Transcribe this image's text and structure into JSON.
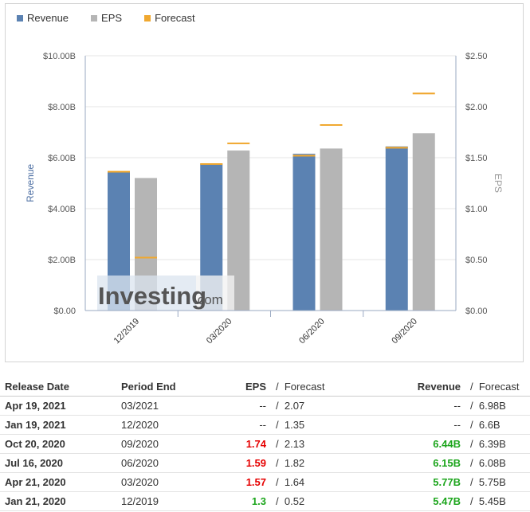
{
  "legend": [
    {
      "label": "Revenue",
      "color": "#5b82b2"
    },
    {
      "label": "EPS",
      "color": "#b5b5b5"
    },
    {
      "label": "Forecast",
      "color": "#f0a830"
    }
  ],
  "chart_data": {
    "type": "bar",
    "categories": [
      "12/2019",
      "03/2020",
      "06/2020",
      "09/2020"
    ],
    "series": [
      {
        "name": "Revenue",
        "axis": "left",
        "values": [
          5.47,
          5.77,
          6.15,
          6.44
        ],
        "color": "#5b82b2"
      },
      {
        "name": "EPS",
        "axis": "right",
        "values": [
          1.3,
          1.57,
          1.59,
          1.74
        ],
        "color": "#b5b5b5"
      }
    ],
    "forecasts": {
      "revenue": [
        5.45,
        5.75,
        6.08,
        6.39
      ],
      "eps": [
        0.52,
        1.64,
        1.82,
        2.13
      ],
      "color": "#f0a830"
    },
    "ylabel": "Revenue",
    "y2label": "EPS",
    "ylim": [
      0,
      10
    ],
    "y2lim": [
      0,
      2.5
    ],
    "yticks": [
      "$0.00",
      "$2.00B",
      "$4.00B",
      "$6.00B",
      "$8.00B",
      "$10.00B"
    ],
    "y2ticks": [
      "$0.00",
      "$0.50",
      "$1.00",
      "$1.50",
      "$2.00",
      "$2.50"
    ],
    "grid": true,
    "legend_position": "top-left"
  },
  "watermark": {
    "text": "Investing",
    "suffix": ".com"
  },
  "table": {
    "headers": {
      "release_date": "Release Date",
      "period_end": "Period End",
      "eps": "EPS",
      "eps_forecast": "Forecast",
      "revenue": "Revenue",
      "revenue_forecast": "Forecast",
      "separator": "/"
    },
    "rows": [
      {
        "date": "Apr 19, 2021",
        "period": "03/2021",
        "eps": "--",
        "eps_class": "neutral",
        "eps_forecast": "2.07",
        "revenue": "--",
        "rev_class": "neutral",
        "rev_forecast": "6.98B"
      },
      {
        "date": "Jan 19, 2021",
        "period": "12/2020",
        "eps": "--",
        "eps_class": "neutral",
        "eps_forecast": "1.35",
        "revenue": "--",
        "rev_class": "neutral",
        "rev_forecast": "6.6B"
      },
      {
        "date": "Oct 20, 2020",
        "period": "09/2020",
        "eps": "1.74",
        "eps_class": "red",
        "eps_forecast": "2.13",
        "revenue": "6.44B",
        "rev_class": "green",
        "rev_forecast": "6.39B"
      },
      {
        "date": "Jul 16, 2020",
        "period": "06/2020",
        "eps": "1.59",
        "eps_class": "red",
        "eps_forecast": "1.82",
        "revenue": "6.15B",
        "rev_class": "green",
        "rev_forecast": "6.08B"
      },
      {
        "date": "Apr 21, 2020",
        "period": "03/2020",
        "eps": "1.57",
        "eps_class": "red",
        "eps_forecast": "1.64",
        "revenue": "5.77B",
        "rev_class": "green",
        "rev_forecast": "5.75B"
      },
      {
        "date": "Jan 21, 2020",
        "period": "12/2019",
        "eps": "1.3",
        "eps_class": "green",
        "eps_forecast": "0.52",
        "revenue": "5.47B",
        "rev_class": "green",
        "rev_forecast": "5.45B"
      }
    ]
  }
}
